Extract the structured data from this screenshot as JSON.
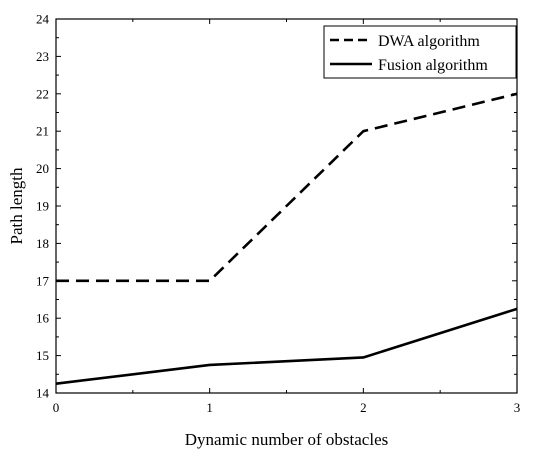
{
  "chart_data": {
    "type": "line",
    "title": "",
    "xlabel": "Dynamic number of obstacles",
    "ylabel": "Path length",
    "x": [
      0,
      1,
      2,
      3
    ],
    "xlim": [
      0,
      3
    ],
    "ylim": [
      14,
      24
    ],
    "xticks": [
      "0",
      "1",
      "2",
      "3"
    ],
    "yticks": [
      "14",
      "15",
      "16",
      "17",
      "18",
      "19",
      "20",
      "21",
      "22",
      "23",
      "24"
    ],
    "grid": false,
    "legend_position": "top-right",
    "series": [
      {
        "name": "DWA algorithm",
        "values": [
          17.0,
          17.0,
          21.0,
          22.0
        ],
        "style": "dashed",
        "color": "#000000"
      },
      {
        "name": "Fusion algorithm",
        "values": [
          14.25,
          14.75,
          14.95,
          16.25
        ],
        "style": "solid",
        "color": "#000000"
      }
    ]
  }
}
